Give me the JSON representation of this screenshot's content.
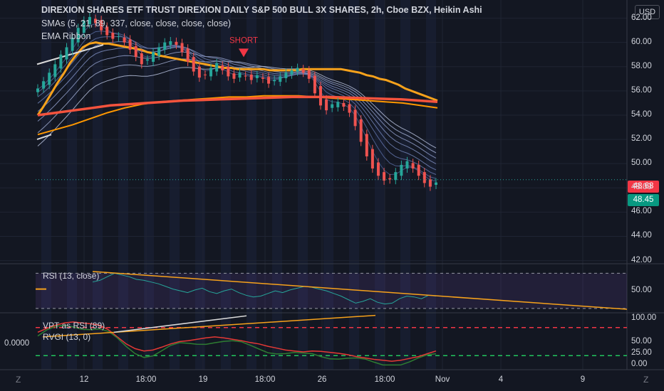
{
  "header": {
    "title": "DIREXION SHARES ETF TRUST DIREXION DAILY S&P 500 BULL 3X SHARES, 2h, Cboe BZX, Heikin Ashi",
    "indicator_sma": "SMAs (5, 21, 89, 337, close, close, close, close)",
    "indicator_ema": "EMA Ribbon",
    "currency_button": "USD"
  },
  "panes": {
    "rsi_label": "RSI (13, close)",
    "vpt_label": "VPT as RSI (89)",
    "rvgi_label": "RVGI (13, 0)",
    "rvgi_value": "0.0000"
  },
  "price_tags": [
    {
      "value": "48.68",
      "color": "#f23645"
    },
    {
      "value": "48.45",
      "color": "#089981"
    }
  ],
  "annotation": {
    "text": "SHORT",
    "color": "#f23645"
  },
  "corner_buttons": {
    "left": "Z",
    "right": "Z"
  },
  "chart_data": [
    {
      "type": "candlestick",
      "title": "DIREXION SHARES ETF TRUST DIREXION DAILY S&P 500 BULL 3X SHARES, 2h, Cboe BZX, Heikin Ashi",
      "x_ticks": [
        "12",
        "18:00",
        "19",
        "18:00",
        "26",
        "18:00",
        "Nov",
        "4",
        "9"
      ],
      "y_ticks": [
        "62.00",
        "60.00",
        "58.00",
        "56.00",
        "54.00",
        "52.00",
        "50.00",
        "48.00",
        "46.00",
        "44.00",
        "42.00"
      ],
      "ylim": [
        41.8,
        63.5
      ],
      "close": [
        56.2,
        56.8,
        57.5,
        58.2,
        59.0,
        59.6,
        60.4,
        61.2,
        61.8,
        62.1,
        61.6,
        61.0,
        60.6,
        60.3,
        60.5,
        60.0,
        59.4,
        58.8,
        58.2,
        58.6,
        59.2,
        59.6,
        60.0,
        60.1,
        59.8,
        59.2,
        58.4,
        57.6,
        57.1,
        57.3,
        57.9,
        58.3,
        57.7,
        57.2,
        57.0,
        57.5,
        57.2,
        56.9,
        57.3,
        57.0,
        56.6,
        56.9,
        57.2,
        57.5,
        57.7,
        57.9,
        57.5,
        57.0,
        55.8,
        54.8,
        54.4,
        54.9,
        55.1,
        54.7,
        54.2,
        53.1,
        51.8,
        50.6,
        49.6,
        49.0,
        48.6,
        48.7,
        49.3,
        49.9,
        50.2,
        49.6,
        49.0,
        48.4,
        48.1,
        48.45
      ],
      "series": [
        {
          "name": "EMA Ribbon (orange)",
          "values": [
            54.0,
            54.8,
            55.7,
            56.6,
            57.4,
            58.3,
            59.0,
            59.6,
            59.9,
            60.0,
            59.9,
            59.9,
            59.8,
            59.7,
            59.6,
            59.5,
            59.4,
            59.2,
            59.1,
            58.9,
            58.8,
            58.7,
            58.6,
            58.5,
            58.4,
            58.3,
            58.2,
            58.1,
            58.0,
            57.9,
            57.9,
            57.8,
            57.8,
            57.8,
            57.8,
            57.8,
            57.7,
            57.7,
            57.7,
            57.7,
            57.7,
            57.8,
            57.8,
            57.8,
            57.8,
            57.8,
            57.8,
            57.8,
            57.7,
            57.6,
            57.5,
            57.3,
            57.2,
            57.0,
            56.9,
            56.7,
            56.5,
            56.2,
            56.0,
            55.8,
            55.6,
            55.4,
            55.2
          ]
        },
        {
          "name": "SMA 337",
          "values": [
            54.0,
            54.2,
            54.4,
            54.6,
            54.8,
            54.9,
            55.0,
            55.1,
            55.2,
            55.25,
            55.3,
            55.35,
            55.4,
            55.45,
            55.5,
            55.5,
            55.5,
            55.45,
            55.4,
            55.35,
            55.3,
            55.2,
            55.1
          ]
        }
      ]
    },
    {
      "type": "line",
      "title": "RSI (13, close)",
      "y_ticks": [
        "50.00"
      ],
      "ylim": [
        25,
        80
      ],
      "band": [
        30,
        70
      ]
    },
    {
      "type": "line",
      "title": "VPT as RSI (89) / RVGI (13, 0)",
      "y_ticks": [
        "100.00",
        "50.00",
        "25.00",
        "0.00"
      ],
      "ylim": [
        -10,
        110
      ],
      "levels": [
        {
          "value": 80,
          "color": "#f23645"
        },
        {
          "value": 20,
          "color": "#22c55e"
        }
      ]
    }
  ]
}
